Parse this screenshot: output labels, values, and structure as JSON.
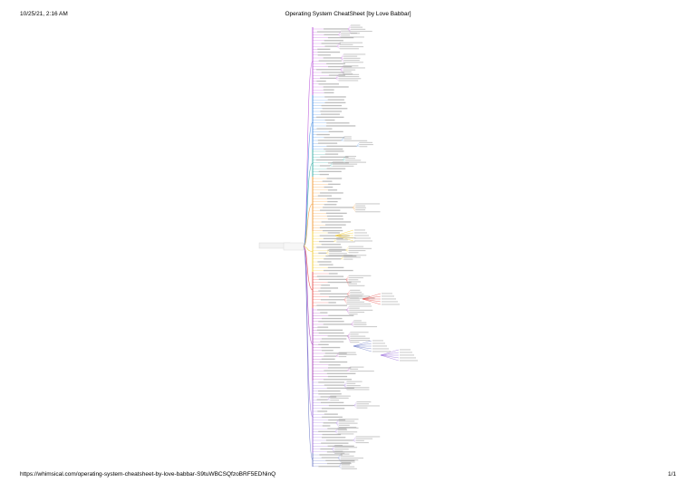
{
  "header": {
    "date": "10/25/21, 2:16 AM",
    "title": "Operating System CheatSheet [by Love Babbar]"
  },
  "footer": {
    "url": "https://whimsical.com/operating-system-cheatsheet-by-love-babbar-S9tuWBCSQfzoBRF5EDNinQ",
    "page": "1/1"
  },
  "mindmap": {
    "branch_colors": [
      "#b13fd6",
      "#2f7fe0",
      "#1aa39a",
      "#f08c1a",
      "#f0c419",
      "#e53935",
      "#9c27b0",
      "#8e5bd6",
      "#5c6bc0"
    ]
  }
}
